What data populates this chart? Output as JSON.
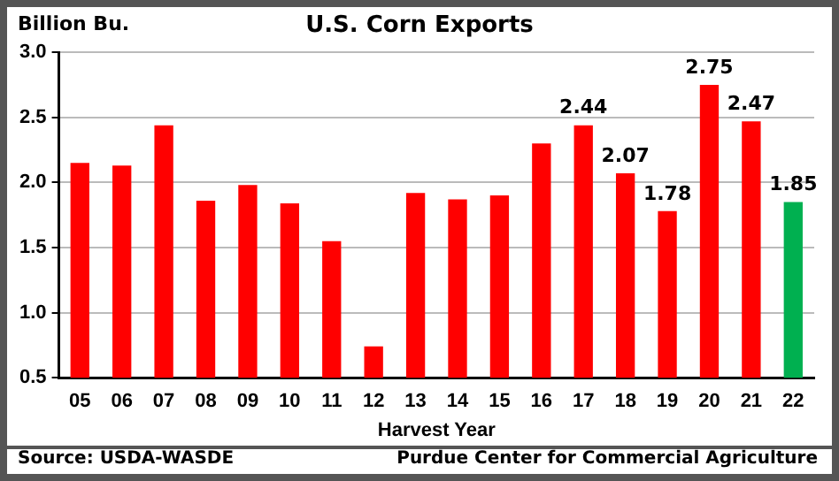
{
  "chart_data": {
    "type": "bar",
    "title": "U.S. Corn Exports",
    "ylabel": "Billion Bu.",
    "xlabel": "Harvest Year",
    "categories": [
      "05",
      "06",
      "07",
      "08",
      "09",
      "10",
      "11",
      "12",
      "13",
      "14",
      "15",
      "16",
      "17",
      "18",
      "19",
      "20",
      "21",
      "22"
    ],
    "values": [
      2.15,
      2.13,
      2.44,
      1.86,
      1.98,
      1.84,
      1.55,
      0.74,
      1.92,
      1.87,
      1.9,
      2.3,
      2.44,
      2.07,
      1.78,
      2.75,
      2.47,
      1.85
    ],
    "value_labels": [
      null,
      null,
      null,
      null,
      null,
      null,
      null,
      null,
      null,
      null,
      null,
      null,
      "2.44",
      "2.07",
      "1.78",
      "2.75",
      "2.47",
      "1.85"
    ],
    "colors": [
      "#ff0000",
      "#ff0000",
      "#ff0000",
      "#ff0000",
      "#ff0000",
      "#ff0000",
      "#ff0000",
      "#ff0000",
      "#ff0000",
      "#ff0000",
      "#ff0000",
      "#ff0000",
      "#ff0000",
      "#ff0000",
      "#ff0000",
      "#ff0000",
      "#ff0000",
      "#00b050"
    ],
    "ylim": [
      0.5,
      3.0
    ],
    "yticks": [
      {
        "value": 0.5,
        "label": "0.5"
      },
      {
        "value": 1.0,
        "label": "1.0"
      },
      {
        "value": 1.5,
        "label": "1.5"
      },
      {
        "value": 2.0,
        "label": "2.0"
      },
      {
        "value": 2.5,
        "label": "2.5"
      },
      {
        "value": 3.0,
        "label": "3.0"
      }
    ],
    "grid": "y",
    "legend": false,
    "annotations": [
      "Source:  USDA-WASDE",
      "Purdue Center for Commercial Agriculture"
    ]
  }
}
